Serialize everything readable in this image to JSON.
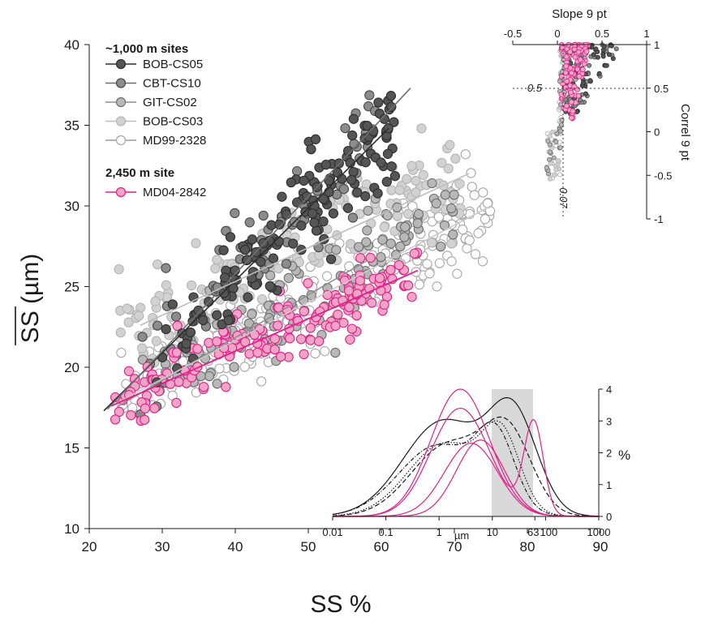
{
  "colors": {
    "bob_cs05": "#555555",
    "cbt_cs10": "#8c8c8c",
    "git_cs02": "#b8b8b8",
    "bob_cs03": "#d2d2d2",
    "md99_2328": "#ffffff",
    "md04_2842": "#f2a4c6",
    "md04_edge": "#e0218a",
    "sortable_band": "#d9d9d9"
  },
  "legend": {
    "group1_title": "~1,000 m sites",
    "group2_title": "2,450 m site",
    "entries": [
      {
        "name": "BOB-CS05",
        "key": "bob_cs05"
      },
      {
        "name": "CBT-CS10",
        "key": "cbt_cs10"
      },
      {
        "name": "GIT-CS02",
        "key": "git_cs02"
      },
      {
        "name": "BOB-CS03",
        "key": "bob_cs03"
      },
      {
        "name": "MD99-2328",
        "key": "md99_2328"
      }
    ],
    "entry2": {
      "name": "MD04-2842",
      "key": "md04_2842"
    }
  },
  "chart_data": [
    {
      "type": "scatter",
      "xlabel": "SS %",
      "ylabel": "SS (µm)",
      "ylabel_overline": true,
      "xlim": [
        20,
        90
      ],
      "ylim": [
        10,
        40
      ],
      "xticks": [
        20,
        30,
        40,
        50,
        60,
        70,
        80,
        90
      ],
      "yticks": [
        10,
        15,
        20,
        25,
        30,
        35,
        40
      ],
      "series": [
        {
          "name": "BOB-CS05",
          "key": "bob_cs05",
          "x_range": [
            29,
            62
          ],
          "trend": [
            [
              22,
              17.3
            ],
            [
              61,
              34.8
            ]
          ],
          "n": 160
        },
        {
          "name": "CBT-CS10",
          "key": "cbt_cs10",
          "x_range": [
            26,
            60
          ],
          "trend": [
            [
              22.5,
              17.4
            ],
            [
              64,
              37.3
            ]
          ],
          "n": 70
        },
        {
          "name": "GIT-CS02",
          "key": "git_cs02",
          "x_range": [
            27,
            70
          ],
          "trend": [
            [
              24,
              17.6
            ],
            [
              58,
              26.6
            ]
          ],
          "n": 130
        },
        {
          "name": "BOB-CS03",
          "key": "bob_cs03",
          "x_range": [
            24,
            72
          ],
          "trend": [
            [
              27,
              22.6
            ],
            [
              72,
              32.0
            ]
          ],
          "n": 160
        },
        {
          "name": "MD99-2328",
          "key": "md99_2328",
          "x_range": [
            24,
            75
          ],
          "trend": [
            [
              23,
              17.6
            ],
            [
              75,
              30.0
            ]
          ],
          "n": 260
        },
        {
          "name": "MD04-2842",
          "key": "md04_2842",
          "x_range": [
            23,
            65
          ],
          "trend": [
            [
              23,
              17.6
            ],
            [
              65,
              26.0
            ]
          ],
          "n": 170
        }
      ]
    },
    {
      "type": "scatter",
      "inset": "top-right",
      "xlabel": "Slope 9 pt",
      "ylabel": "Correl 9 pt",
      "xlim": [
        -0.5,
        1
      ],
      "ylim": [
        -1,
        1
      ],
      "xticks": [
        -0.5,
        0,
        0.5,
        1
      ],
      "xtick_labels": [
        "-0.5",
        "0",
        "0.5",
        "1"
      ],
      "yticks": [
        -1,
        -0.5,
        0,
        0.5,
        1
      ],
      "ytick_labels": [
        "-1",
        "-0.5",
        "0",
        "0.5",
        "1"
      ],
      "ref_lines": {
        "horizontal": 0.5,
        "vertical": 0.07
      },
      "ref_labels": {
        "horizontal": "0.5",
        "vertical": "0.07"
      }
    },
    {
      "type": "line",
      "inset": "bottom-right",
      "xlabel": "µm",
      "ylabel": "%",
      "xscale": "log",
      "xlim": [
        0.01,
        1000
      ],
      "ylim": [
        0,
        4
      ],
      "xtick_labels": [
        "0.01",
        "0.1",
        "1",
        "10",
        "63",
        "100",
        "1000"
      ],
      "xtick_values": [
        0.01,
        0.1,
        1,
        10,
        63,
        100,
        1000
      ],
      "yticks": [
        0,
        1,
        2,
        3,
        4
      ],
      "band": [
        10,
        63
      ],
      "curves": [
        {
          "style": "solid-dark",
          "peaks": [
            [
              1.2,
              3.0,
              0.75
            ],
            [
              25,
              3.0,
              0.45
            ]
          ]
        },
        {
          "style": "dash-dark",
          "peaks": [
            [
              1.5,
              2.25,
              0.7
            ],
            [
              20,
              2.4,
              0.45
            ]
          ]
        },
        {
          "style": "dot-dark",
          "peaks": [
            [
              1.3,
              2.3,
              0.7
            ],
            [
              15,
              2.2,
              0.35
            ]
          ]
        },
        {
          "style": "dashdot-dark",
          "peaks": [
            [
              1.0,
              2.25,
              0.75
            ],
            [
              12,
              2.1,
              0.35
            ]
          ]
        },
        {
          "style": "solid-pink",
          "peaks": [
            [
              2.5,
              4.0,
              0.55
            ],
            [
              55,
              0.0,
              0.2
            ]
          ]
        },
        {
          "style": "solid-pink",
          "peaks": [
            [
              2.5,
              3.4,
              0.55
            ],
            [
              60,
              2.9,
              0.18
            ]
          ]
        },
        {
          "style": "solid-pink",
          "peaks": [
            [
              6,
              2.4,
              0.45
            ]
          ]
        },
        {
          "style": "solid-pink",
          "peaks": [
            [
              4,
              2.3,
              0.5
            ]
          ]
        }
      ]
    }
  ]
}
